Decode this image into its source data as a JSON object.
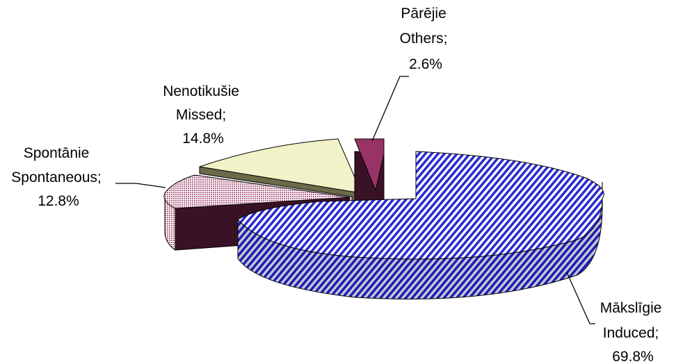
{
  "chart_data": {
    "type": "pie",
    "style": "3d-exploded",
    "slices": [
      {
        "name_lv": "Mākslīgie",
        "name_en": "Induced;",
        "value": 69.8,
        "value_label": "69.8%",
        "color": "#2b2bd0",
        "pattern": "diagonal-stripes"
      },
      {
        "name_lv": "Pārējie",
        "name_en": "Others;",
        "value": 2.6,
        "value_label": "2.6%",
        "color": "#993366",
        "pattern": "solid"
      },
      {
        "name_lv": "Nenotikušie",
        "name_en": "Missed;",
        "value": 14.8,
        "value_label": "14.8%",
        "color": "#f2f2c8",
        "pattern": "solid"
      },
      {
        "name_lv": "Spontānie",
        "name_en": "Spontaneous;",
        "value": 12.8,
        "value_label": "12.8%",
        "color": "#b46a8a",
        "pattern": "fine-grid"
      }
    ]
  }
}
